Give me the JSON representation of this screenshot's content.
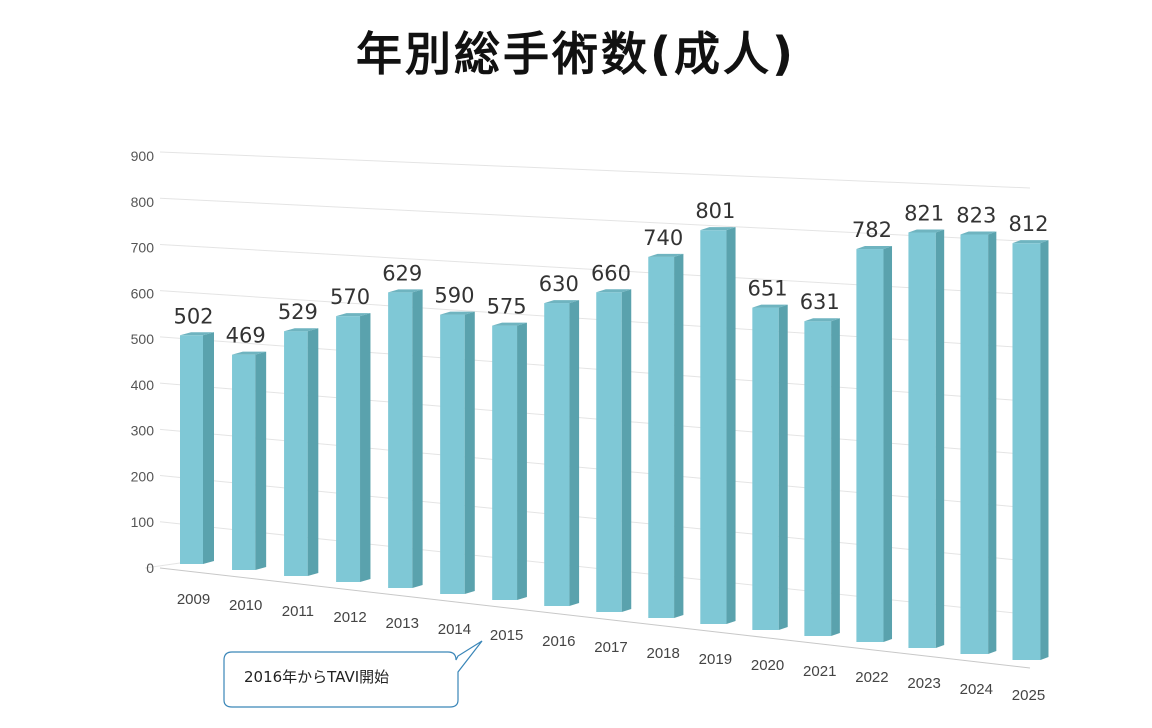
{
  "chart_data": {
    "type": "bar",
    "title": "年別総手術数(成人)",
    "categories": [
      "2009",
      "2010",
      "2011",
      "2012",
      "2013",
      "2014",
      "2015",
      "2016",
      "2017",
      "2018",
      "2019",
      "2020",
      "2021",
      "2022",
      "2023",
      "2024",
      "2025"
    ],
    "values": [
      502,
      469,
      529,
      570,
      629,
      590,
      575,
      630,
      660,
      740,
      801,
      651,
      631,
      782,
      821,
      823,
      812
    ],
    "y_ticks": [
      "0",
      "100",
      "200",
      "300",
      "400",
      "500",
      "600",
      "700",
      "800",
      "900"
    ],
    "ylim": [
      0,
      900
    ],
    "grid": true,
    "style": "3d-perspective",
    "bar_color": "#7fc8d6",
    "bar_side_color": "#5aa2ad",
    "bar_top_color": "#6fb4c0"
  },
  "annotation": {
    "text": "2016年からTAVI開始",
    "points_to": "2016"
  }
}
